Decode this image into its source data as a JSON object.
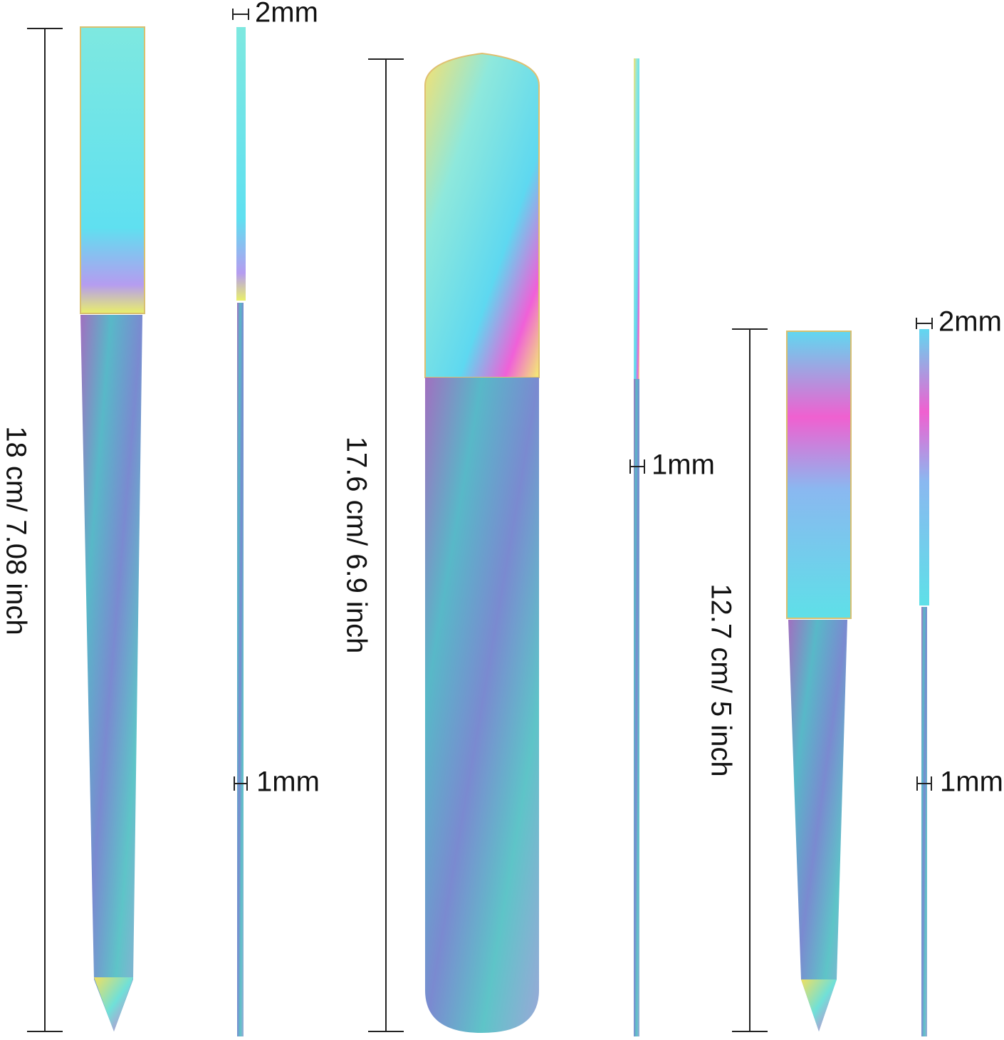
{
  "tools": [
    {
      "length": "18 cm/ 7.08 inch",
      "handle_thickness": "2mm",
      "blade_thickness": "1mm"
    },
    {
      "length": "17.6 cm/ 6.9 inch",
      "thickness": "1mm"
    },
    {
      "length": "12.7 cm/ 5 inch",
      "handle_thickness": "2mm",
      "blade_thickness": "1mm"
    }
  ]
}
